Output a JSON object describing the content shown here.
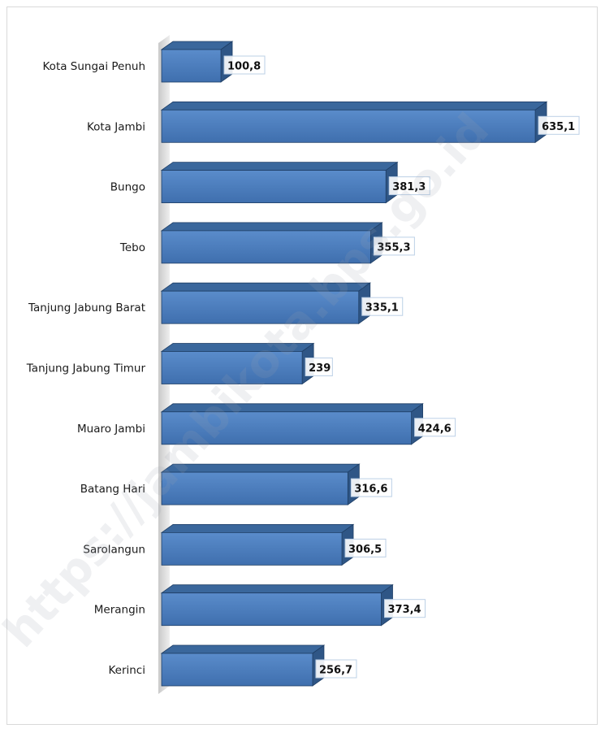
{
  "chart_data": {
    "type": "bar",
    "orientation": "horizontal",
    "categories": [
      "Kota Sungai Penuh",
      "Kota Jambi",
      "Bungo",
      "Tebo",
      "Tanjung Jabung Barat",
      "Tanjung Jabung Timur",
      "Muaro Jambi",
      "Batang Hari",
      "Sarolangun",
      "Merangin",
      "Kerinci"
    ],
    "values": [
      100.8,
      635.1,
      381.3,
      355.3,
      335.1,
      239,
      424.6,
      316.6,
      306.5,
      373.4,
      256.7
    ],
    "data_labels": [
      "100,8",
      "635,1",
      "381,3",
      "355,3",
      "335,1",
      "239",
      "424,6",
      "316,6",
      "306,5",
      "373,4",
      "256,7"
    ],
    "bar_style": "3d",
    "colors": {
      "bar_front": "#4f81bd",
      "bar_top": "#3a679c",
      "bar_side": "#2f5686",
      "bar_edge": "#1f3f66"
    },
    "title": "",
    "xlabel": "",
    "ylabel": "",
    "grid": false,
    "legend": "none"
  },
  "watermark": "https://jambikota.bps.go.id"
}
